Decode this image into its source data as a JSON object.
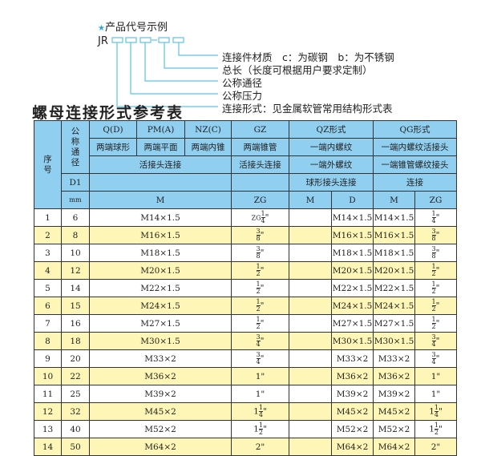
{
  "code_example": {
    "title": "产品代号示例",
    "star_icon": "star-icon",
    "prefix": "JR",
    "separator": "-",
    "labels": [
      "连接件材质　c：为碳钢　b：为不锈钢",
      "总长（长度可根据用户要求定制）",
      "公称通径",
      "公称压力",
      "连接形式：见金属软管常用结构形式表"
    ]
  },
  "table_title": "螺母连接形式参考表",
  "colors": {
    "header": "#90cff0",
    "alt_row": "#fdf6b6",
    "lines": "#5ec3e0"
  },
  "header": {
    "seq": "序号",
    "dn": "公称通径",
    "d1": "D1",
    "mm": "mm",
    "qd": "Q(D)",
    "pma": "PM(A)",
    "nzc": "NZ(C)",
    "gz": "GZ",
    "qz": "QZ形式",
    "qg": "QG形式",
    "qd_desc": "两端球形",
    "pma_desc": "两端平面",
    "nzc_desc": "两端内锥",
    "gz_desc": "两端锥管",
    "qz_desc": "一端内螺纹",
    "qg_desc": "一端内螺纹活接头",
    "live_joint": "活接头连接",
    "gz_joint": "活接头连接",
    "qz_desc2": "一端外螺纹",
    "qg_desc2": "一端锥管螺纹接头",
    "qz_desc3": "球形接头连接",
    "qg_desc3": "连接",
    "col_m": "M",
    "col_zg": "ZG",
    "col_qz_m": "M",
    "col_qz_d": "D",
    "col_qg_m": "M",
    "col_qg_zg": "ZG"
  },
  "rows": [
    {
      "no": "1",
      "dn": "6",
      "m": "M14×1.5",
      "zg": {
        "prefix": "ZG",
        "whole": "",
        "num": "1",
        "den": "4"
      },
      "qz_m": "",
      "qz_d": "M14×1.5",
      "qg_m": "M14×1.5",
      "qg_zg": {
        "prefix": "",
        "whole": "",
        "num": "1",
        "den": "4"
      }
    },
    {
      "no": "2",
      "dn": "8",
      "m": "M16×1.5",
      "zg": {
        "prefix": "",
        "whole": "",
        "num": "3",
        "den": "8"
      },
      "qz_m": "",
      "qz_d": "M16×1.5",
      "qg_m": "M16×1.5",
      "qg_zg": {
        "prefix": "",
        "whole": "",
        "num": "3",
        "den": "8"
      }
    },
    {
      "no": "3",
      "dn": "10",
      "m": "M18×1.5",
      "zg": {
        "prefix": "",
        "whole": "",
        "num": "3",
        "den": "8"
      },
      "qz_m": "",
      "qz_d": "M18×1.5",
      "qg_m": "M18×1.5",
      "qg_zg": {
        "prefix": "",
        "whole": "",
        "num": "3",
        "den": "8"
      }
    },
    {
      "no": "4",
      "dn": "12",
      "m": "M20×1.5",
      "zg": {
        "prefix": "",
        "whole": "",
        "num": "1",
        "den": "2"
      },
      "qz_m": "",
      "qz_d": "M20×1.5",
      "qg_m": "M20×1.5",
      "qg_zg": {
        "prefix": "",
        "whole": "",
        "num": "1",
        "den": "2"
      }
    },
    {
      "no": "5",
      "dn": "14",
      "m": "M22×1.5",
      "zg": {
        "prefix": "",
        "whole": "",
        "num": "1",
        "den": "2"
      },
      "qz_m": "",
      "qz_d": "M22×1.5",
      "qg_m": "M22×1.5",
      "qg_zg": {
        "prefix": "",
        "whole": "",
        "num": "1",
        "den": "2"
      }
    },
    {
      "no": "6",
      "dn": "15",
      "m": "M24×1.5",
      "zg": {
        "prefix": "",
        "whole": "",
        "num": "1",
        "den": "2"
      },
      "qz_m": "",
      "qz_d": "M24×1.5",
      "qg_m": "M24×1.5",
      "qg_zg": {
        "prefix": "",
        "whole": "",
        "num": "1",
        "den": "2"
      }
    },
    {
      "no": "7",
      "dn": "16",
      "m": "M27×1.5",
      "zg": {
        "prefix": "",
        "whole": "",
        "num": "1",
        "den": "2"
      },
      "qz_m": "",
      "qz_d": "M27×1.5",
      "qg_m": "M27×1.5",
      "qg_zg": {
        "prefix": "",
        "whole": "",
        "num": "1",
        "den": "2"
      }
    },
    {
      "no": "8",
      "dn": "18",
      "m": "M30×1.5",
      "zg": {
        "prefix": "",
        "whole": "",
        "num": "3",
        "den": "4"
      },
      "qz_m": "",
      "qz_d": "M30×1.5",
      "qg_m": "M30×1.5",
      "qg_zg": {
        "prefix": "",
        "whole": "",
        "num": "3",
        "den": "4"
      }
    },
    {
      "no": "9",
      "dn": "20",
      "m": "M33×2",
      "zg": {
        "prefix": "",
        "whole": "",
        "num": "3",
        "den": "4"
      },
      "qz_m": "",
      "qz_d": "M33×2",
      "qg_m": "M33×2",
      "qg_zg": {
        "prefix": "",
        "whole": "",
        "num": "3",
        "den": "4"
      }
    },
    {
      "no": "10",
      "dn": "22",
      "m": "M36×2",
      "zg": {
        "prefix": "",
        "whole": "1",
        "num": "",
        "den": ""
      },
      "qz_m": "",
      "qz_d": "M36×2",
      "qg_m": "M36×2",
      "qg_zg": {
        "prefix": "",
        "whole": "1",
        "num": "",
        "den": ""
      }
    },
    {
      "no": "11",
      "dn": "25",
      "m": "M39×2",
      "zg": {
        "prefix": "",
        "whole": "1",
        "num": "",
        "den": ""
      },
      "qz_m": "",
      "qz_d": "M39×2",
      "qg_m": "M39×2",
      "qg_zg": {
        "prefix": "",
        "whole": "1",
        "num": "",
        "den": ""
      }
    },
    {
      "no": "12",
      "dn": "32",
      "m": "M45×2",
      "zg": {
        "prefix": "",
        "whole": "1",
        "num": "1",
        "den": "4"
      },
      "qz_m": "",
      "qz_d": "M45×2",
      "qg_m": "M45×2",
      "qg_zg": {
        "prefix": "",
        "whole": "1",
        "num": "1",
        "den": "4"
      }
    },
    {
      "no": "13",
      "dn": "40",
      "m": "M52×2",
      "zg": {
        "prefix": "",
        "whole": "1",
        "num": "1",
        "den": "2"
      },
      "qz_m": "",
      "qz_d": "M52×2",
      "qg_m": "M52×2",
      "qg_zg": {
        "prefix": "",
        "whole": "1",
        "num": "1",
        "den": "2"
      }
    },
    {
      "no": "14",
      "dn": "50",
      "m": "M64×2",
      "zg": {
        "prefix": "",
        "whole": "2",
        "num": "",
        "den": ""
      },
      "qz_m": "",
      "qz_d": "M64×2",
      "qg_m": "M64×2",
      "qg_zg": {
        "prefix": "",
        "whole": "2",
        "num": "",
        "den": ""
      }
    }
  ]
}
